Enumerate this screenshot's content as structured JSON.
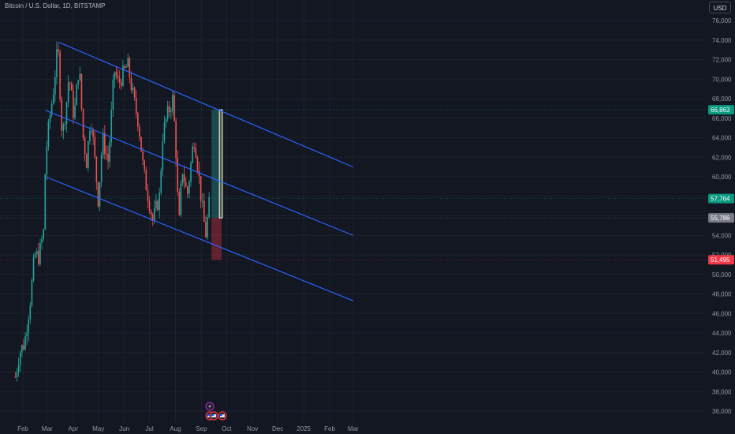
{
  "header": {
    "title": "Bitcoin / U.S. Dollar, 1D, BITSTAMP",
    "currency": "USD"
  },
  "colors": {
    "background": "#131722",
    "grid": "#1e222d",
    "candle_up": "#26a69a",
    "candle_down": "#ef5350",
    "channel": "#2962ff",
    "target_box": "#ffffff"
  },
  "chart_data": {
    "type": "candlestick",
    "symbol": "Bitcoin / U.S. Dollar",
    "interval": "1D",
    "exchange": "BITSTAMP",
    "ylim": [
      36000,
      77000
    ],
    "y_ticks": [
      "76,000",
      "74,000",
      "72,000",
      "70,000",
      "68,000",
      "66,000",
      "64,000",
      "62,000",
      "60,000",
      "58,000",
      "56,000",
      "54,000",
      "52,000",
      "50,000",
      "48,000",
      "46,000",
      "44,000",
      "42,000",
      "40,000",
      "38,000",
      "36,000"
    ],
    "x_ticks": [
      "Feb",
      "Mar",
      "Apr",
      "May",
      "Jun",
      "Jul",
      "Aug",
      "Sep",
      "Oct",
      "Nov",
      "Dec",
      "2025",
      "Feb",
      "Mar"
    ],
    "price_labels": [
      {
        "text": "66,863",
        "value": 66863,
        "color": "#089981"
      },
      {
        "text": "57,764",
        "value": 57764,
        "color": "#089981"
      },
      {
        "text": "55,786",
        "value": 55786,
        "color": "#787b86"
      },
      {
        "text": "51,495",
        "value": 51495,
        "color": "#f23645"
      }
    ],
    "price_path": [
      [
        "2024-01-23",
        39500
      ],
      [
        "2024-01-28",
        42000
      ],
      [
        "2024-02-03",
        43000
      ],
      [
        "2024-02-10",
        47500
      ],
      [
        "2024-02-15",
        52000
      ],
      [
        "2024-02-20",
        51800
      ],
      [
        "2024-02-26",
        54500
      ],
      [
        "2024-02-28",
        62000
      ],
      [
        "2024-03-04",
        66000
      ],
      [
        "2024-03-08",
        68500
      ],
      [
        "2024-03-12",
        72000
      ],
      [
        "2024-03-14",
        73000
      ],
      [
        "2024-03-19",
        64000
      ],
      [
        "2024-03-24",
        67500
      ],
      [
        "2024-03-27",
        70500
      ],
      [
        "2024-04-02",
        66000
      ],
      [
        "2024-04-08",
        71500
      ],
      [
        "2024-04-13",
        64000
      ],
      [
        "2024-04-17",
        61500
      ],
      [
        "2024-04-22",
        66500
      ],
      [
        "2024-05-01",
        57500
      ],
      [
        "2024-05-06",
        64000
      ],
      [
        "2024-05-13",
        61500
      ],
      [
        "2024-05-20",
        71000
      ],
      [
        "2024-05-25",
        69500
      ],
      [
        "2024-06-05",
        71500
      ],
      [
        "2024-06-12",
        68000
      ],
      [
        "2024-06-18",
        65500
      ],
      [
        "2024-06-24",
        60500
      ],
      [
        "2024-07-05",
        55500
      ],
      [
        "2024-07-13",
        58000
      ],
      [
        "2024-07-17",
        64500
      ],
      [
        "2024-07-23",
        66500
      ],
      [
        "2024-07-29",
        68000
      ],
      [
        "2024-08-02",
        62000
      ],
      [
        "2024-08-05",
        54500
      ],
      [
        "2024-08-09",
        61000
      ],
      [
        "2024-08-15",
        58000
      ],
      [
        "2024-08-23",
        64000
      ],
      [
        "2024-08-26",
        62500
      ],
      [
        "2024-09-01",
        57500
      ],
      [
        "2024-09-06",
        54000
      ],
      [
        "2024-09-10",
        57000
      ],
      [
        "2024-09-12",
        58500
      ]
    ],
    "channel_lines": [
      {
        "name": "upper",
        "points": [
          [
            "2024-03-14",
            73800
          ],
          [
            "2025-03-01",
            61000
          ]
        ]
      },
      {
        "name": "middle",
        "points": [
          [
            "2024-02-28",
            66800
          ],
          [
            "2025-03-01",
            54000
          ]
        ]
      },
      {
        "name": "lower",
        "points": [
          [
            "2024-02-28",
            60000
          ],
          [
            "2025-03-01",
            47300
          ]
        ]
      }
    ],
    "long_position": {
      "entry": 55786,
      "target": 66863,
      "stop": 51495,
      "start": "2024-09-13",
      "end": "2024-09-25"
    },
    "event_markers": [
      {
        "date": "2024-09-11",
        "icon": "lightning"
      },
      {
        "date": "2024-09-11",
        "icon": "us-flag"
      },
      {
        "date": "2024-09-13",
        "icon": "us-flag"
      },
      {
        "date": "2024-09-26",
        "icon": "us-flag"
      }
    ]
  }
}
